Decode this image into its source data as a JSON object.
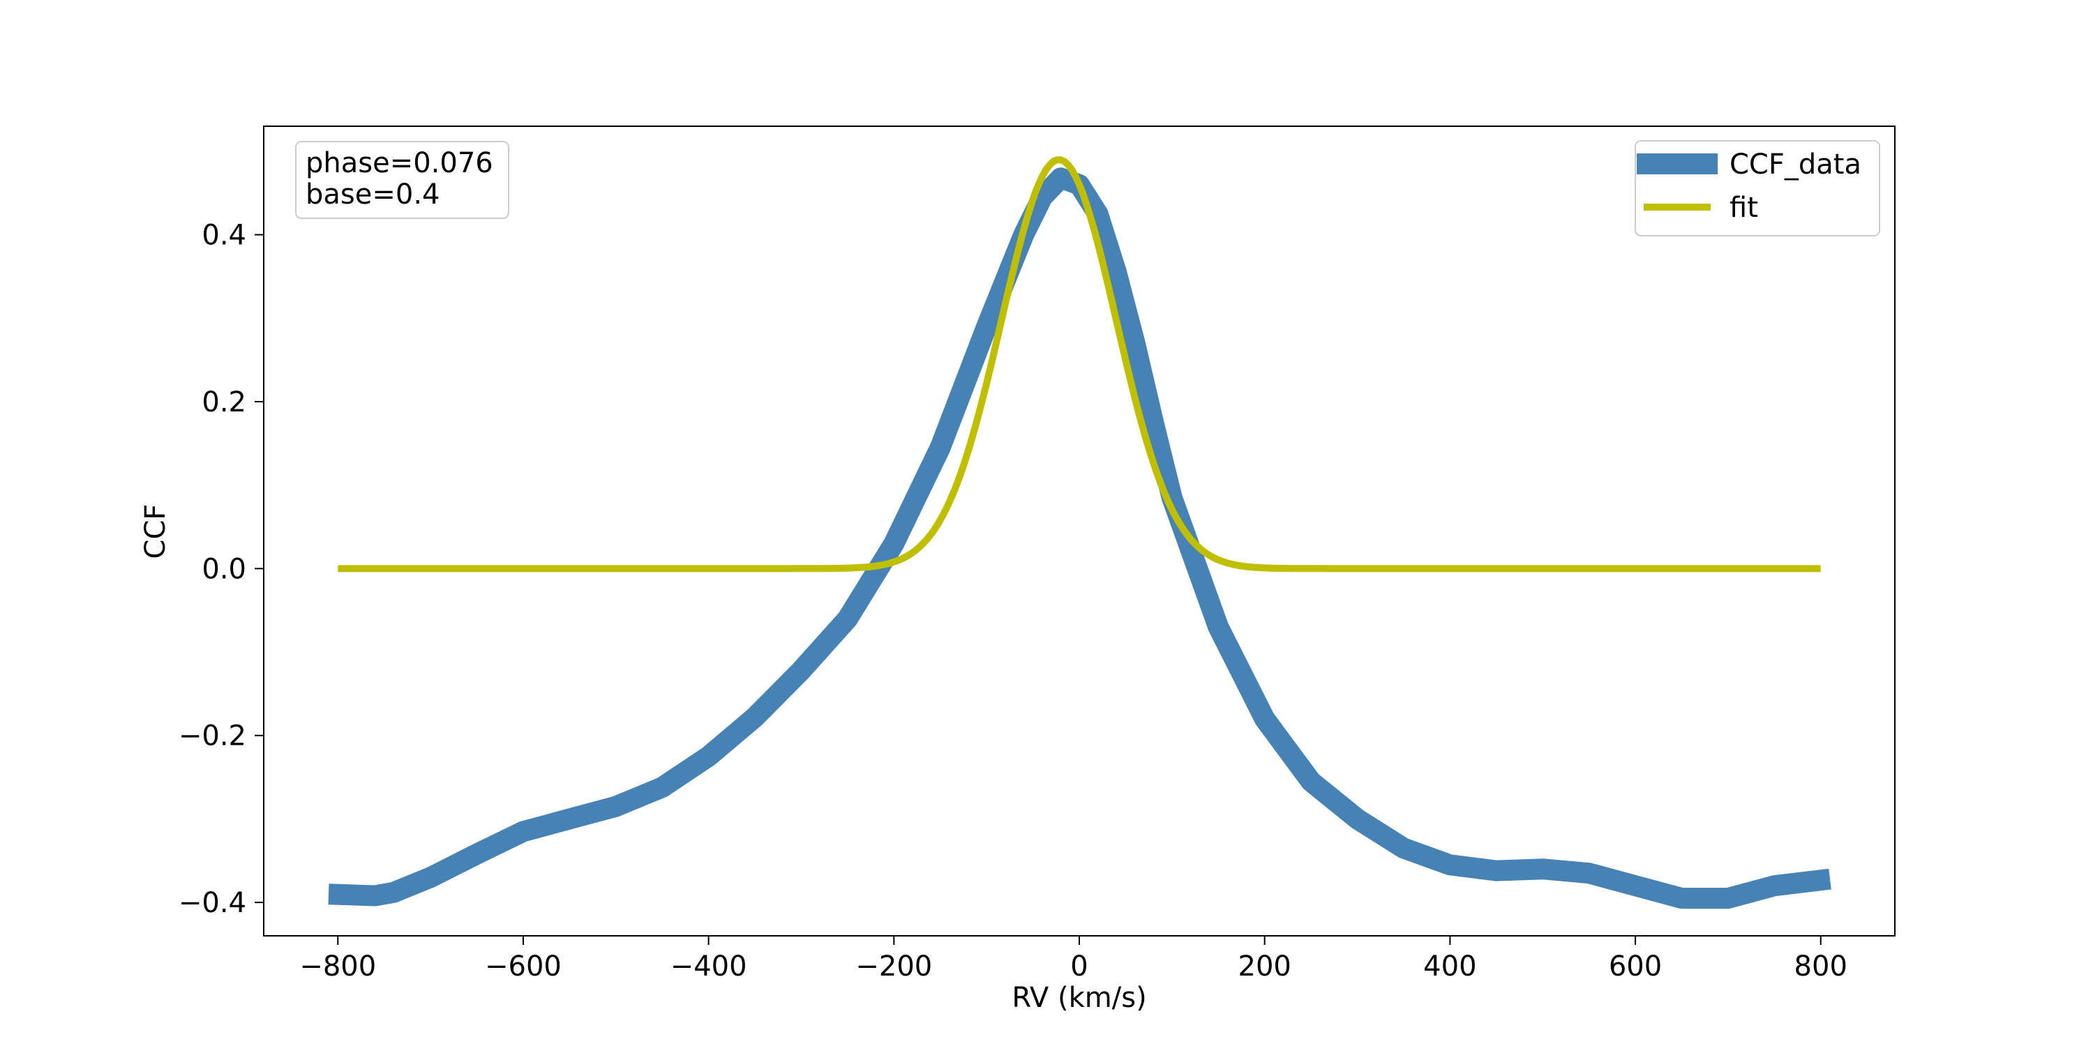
{
  "chart_data": {
    "type": "line",
    "title": "",
    "xlabel": "RV (km/s)",
    "ylabel": "CCF",
    "xlim": [
      -880,
      880
    ],
    "ylim": [
      -0.44,
      0.53
    ],
    "xticks": [
      -800,
      -600,
      -400,
      -200,
      0,
      200,
      400,
      600,
      800
    ],
    "xtick_labels": [
      "−800",
      "−600",
      "−400",
      "−200",
      "0",
      "200",
      "400",
      "600",
      "800"
    ],
    "yticks": [
      -0.4,
      -0.2,
      0.0,
      0.2,
      0.4
    ],
    "ytick_labels": [
      "−0.4",
      "−0.2",
      "0.0",
      "0.2",
      "0.4"
    ],
    "grid": false,
    "legend_position": "top-right",
    "annotation": [
      "phase=0.076",
      "base=0.4"
    ],
    "series": [
      {
        "name": "CCF_data",
        "color": "#4682b4",
        "style": "thick-line",
        "x": [
          -810,
          -760,
          -740,
          -700,
          -650,
          -600,
          -550,
          -500,
          -450,
          -400,
          -350,
          -300,
          -250,
          -200,
          -150,
          -100,
          -60,
          -40,
          -20,
          0,
          20,
          40,
          60,
          80,
          100,
          150,
          200,
          250,
          300,
          350,
          400,
          450,
          500,
          550,
          600,
          650,
          700,
          750,
          810
        ],
        "y": [
          -0.39,
          -0.392,
          -0.388,
          -0.37,
          -0.342,
          -0.315,
          -0.3,
          -0.285,
          -0.262,
          -0.225,
          -0.178,
          -0.122,
          -0.06,
          0.03,
          0.145,
          0.29,
          0.4,
          0.445,
          0.468,
          0.46,
          0.425,
          0.355,
          0.27,
          0.175,
          0.085,
          -0.07,
          -0.18,
          -0.255,
          -0.3,
          -0.335,
          -0.355,
          -0.362,
          -0.36,
          -0.365,
          -0.38,
          -0.395,
          -0.395,
          -0.38,
          -0.372
        ]
      },
      {
        "name": "fit",
        "color": "#bfbf00",
        "style": "line",
        "gaussian": {
          "amplitude": 0.49,
          "center": -22,
          "sigma": 62,
          "baseline": 0.0
        },
        "x_range": [
          -800,
          800
        ]
      }
    ]
  }
}
